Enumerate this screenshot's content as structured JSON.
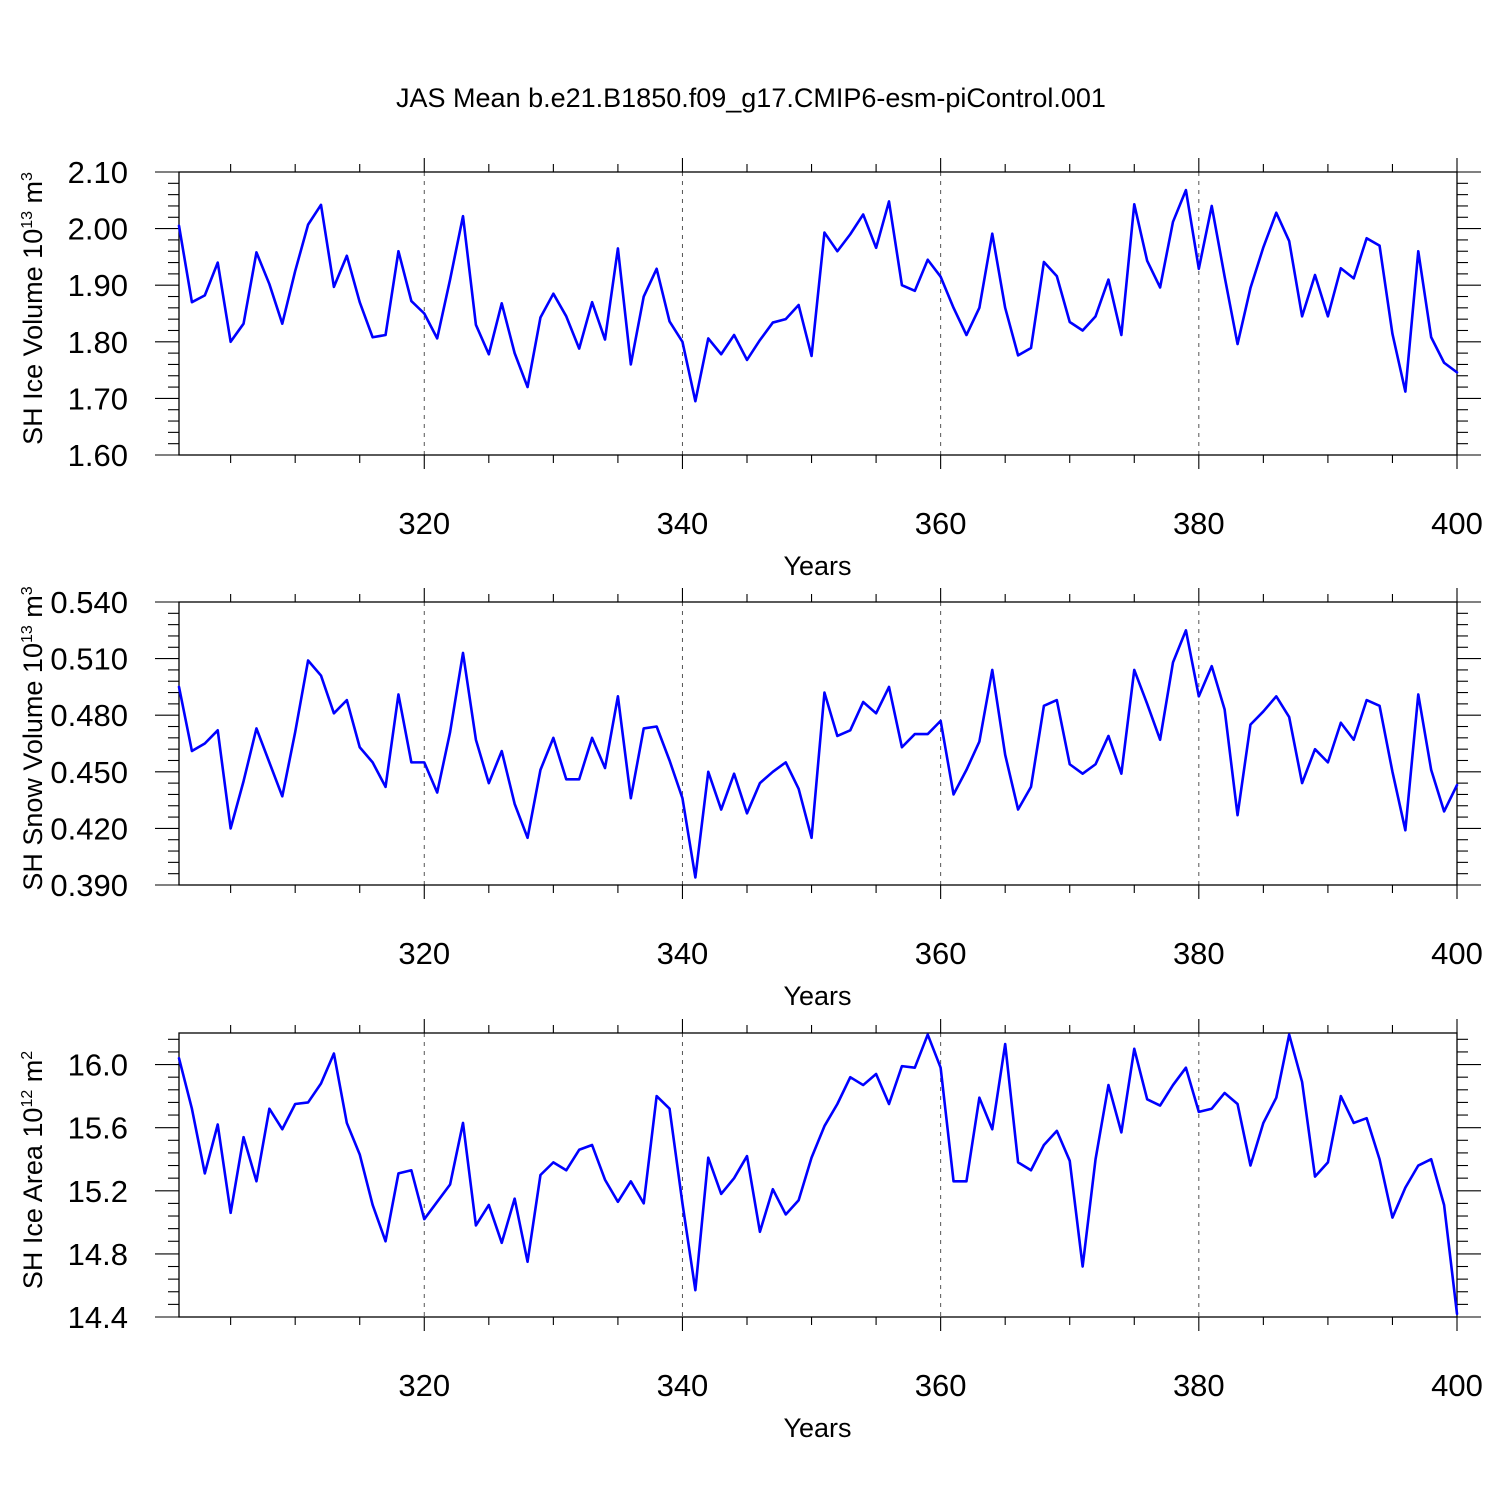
{
  "figure": {
    "title": "JAS Mean b.e21.B1850.f09_g17.CMIP6-esm-piControl.001"
  },
  "colors": {
    "line": "#0000ff",
    "background": "#ffffff",
    "axes": "#000000"
  },
  "chart_data": [
    {
      "type": "line",
      "ylabel_main": "SH Ice Volume 10",
      "ylabel_exp": "13",
      "ylabel_tail": " m",
      "ylabel_unit_exp": "3",
      "xlabel": "Years",
      "xlim": [
        301,
        400
      ],
      "ylim": [
        1.6,
        2.1
      ],
      "x_ticks": [
        320,
        340,
        360,
        380,
        400
      ],
      "y_ticks": [
        "1.60",
        "1.70",
        "1.80",
        "1.90",
        "2.00",
        "2.10"
      ],
      "grid": "dashed vertical lines at major x ticks",
      "x_start": 301,
      "series": [
        {
          "values": [
            2.005,
            1.87,
            1.882,
            1.94,
            1.8,
            1.832,
            1.958,
            1.902,
            1.832,
            1.925,
            2.007,
            2.042,
            1.897,
            1.952,
            1.87,
            1.808,
            1.812,
            1.96,
            1.872,
            1.85,
            1.806,
            1.91,
            2.022,
            1.83,
            1.778,
            1.868,
            1.78,
            1.72,
            1.843,
            1.885,
            1.845,
            1.788,
            1.87,
            1.804,
            1.965,
            1.76,
            1.88,
            1.929,
            1.836,
            1.8,
            1.695,
            1.806,
            1.778,
            1.812,
            1.768,
            1.803,
            1.834,
            1.84,
            1.865,
            1.775,
            1.993,
            1.96,
            1.99,
            2.025,
            1.966,
            2.048,
            1.9,
            1.89,
            1.945,
            1.915,
            1.86,
            1.812,
            1.86,
            1.991,
            1.86,
            1.776,
            1.789,
            1.941,
            1.916,
            1.835,
            1.82,
            1.845,
            1.91,
            1.812,
            2.043,
            1.943,
            1.896,
            2.012,
            2.068,
            1.929,
            2.04,
            1.915,
            1.796,
            1.895,
            1.967,
            2.028,
            1.978,
            1.845,
            1.918,
            1.845,
            1.93,
            1.912,
            1.983,
            1.97,
            1.814,
            1.712,
            1.96,
            1.808,
            1.763,
            1.746
          ]
        }
      ]
    },
    {
      "type": "line",
      "ylabel_main": "SH Snow Volume 10",
      "ylabel_exp": "13",
      "ylabel_tail": " m",
      "ylabel_unit_exp": "3",
      "xlabel": "Years",
      "xlim": [
        301,
        400
      ],
      "ylim": [
        0.39,
        0.54
      ],
      "x_ticks": [
        320,
        340,
        360,
        380,
        400
      ],
      "y_ticks": [
        "0.390",
        "0.420",
        "0.450",
        "0.480",
        "0.510",
        "0.540"
      ],
      "grid": "dashed vertical lines at major x ticks",
      "x_start": 301,
      "series": [
        {
          "values": [
            0.495,
            0.461,
            0.465,
            0.472,
            0.42,
            0.445,
            0.473,
            0.455,
            0.437,
            0.471,
            0.509,
            0.501,
            0.481,
            0.488,
            0.463,
            0.455,
            0.442,
            0.491,
            0.455,
            0.455,
            0.439,
            0.471,
            0.513,
            0.467,
            0.444,
            0.461,
            0.433,
            0.415,
            0.451,
            0.468,
            0.446,
            0.446,
            0.468,
            0.452,
            0.49,
            0.436,
            0.473,
            0.474,
            0.456,
            0.436,
            0.394,
            0.45,
            0.43,
            0.449,
            0.428,
            0.444,
            0.45,
            0.455,
            0.441,
            0.415,
            0.492,
            0.469,
            0.472,
            0.487,
            0.481,
            0.495,
            0.463,
            0.47,
            0.47,
            0.477,
            0.438,
            0.451,
            0.466,
            0.504,
            0.459,
            0.43,
            0.442,
            0.485,
            0.488,
            0.454,
            0.449,
            0.454,
            0.469,
            0.449,
            0.504,
            0.486,
            0.467,
            0.508,
            0.525,
            0.49,
            0.506,
            0.483,
            0.427,
            0.475,
            0.482,
            0.49,
            0.479,
            0.444,
            0.462,
            0.455,
            0.476,
            0.467,
            0.488,
            0.485,
            0.45,
            0.419,
            0.491,
            0.451,
            0.429,
            0.443
          ]
        }
      ]
    },
    {
      "type": "line",
      "ylabel_main": "SH Ice Area 10",
      "ylabel_exp": "12",
      "ylabel_tail": " m",
      "ylabel_unit_exp": "2",
      "xlabel": "Years",
      "xlim": [
        301,
        400
      ],
      "ylim": [
        14.4,
        16.2
      ],
      "x_ticks": [
        320,
        340,
        360,
        380,
        400
      ],
      "y_ticks": [
        "14.4",
        "14.8",
        "15.2",
        "15.6",
        "16.0"
      ],
      "grid": "dashed vertical lines at major x ticks",
      "x_start": 301,
      "series": [
        {
          "values": [
            16.04,
            15.72,
            15.31,
            15.62,
            15.06,
            15.54,
            15.26,
            15.72,
            15.59,
            15.75,
            15.76,
            15.88,
            16.07,
            15.63,
            15.43,
            15.11,
            14.88,
            15.31,
            15.33,
            15.02,
            15.13,
            15.24,
            15.63,
            14.98,
            15.11,
            14.87,
            15.15,
            14.75,
            15.3,
            15.38,
            15.33,
            15.46,
            15.49,
            15.27,
            15.13,
            15.26,
            15.12,
            15.8,
            15.72,
            15.12,
            14.57,
            15.41,
            15.18,
            15.28,
            15.42,
            14.94,
            15.21,
            15.05,
            15.14,
            15.41,
            15.61,
            15.75,
            15.92,
            15.87,
            15.94,
            15.75,
            15.99,
            15.98,
            16.19,
            15.98,
            15.26,
            15.26,
            15.79,
            15.59,
            16.13,
            15.38,
            15.33,
            15.49,
            15.58,
            15.39,
            14.72,
            15.4,
            15.87,
            15.57,
            16.1,
            15.78,
            15.74,
            15.87,
            15.98,
            15.7,
            15.72,
            15.82,
            15.75,
            15.36,
            15.63,
            15.79,
            16.19,
            15.89,
            15.29,
            15.38,
            15.8,
            15.63,
            15.66,
            15.4,
            15.03,
            15.22,
            15.36,
            15.4,
            15.11,
            14.42
          ]
        }
      ]
    }
  ]
}
